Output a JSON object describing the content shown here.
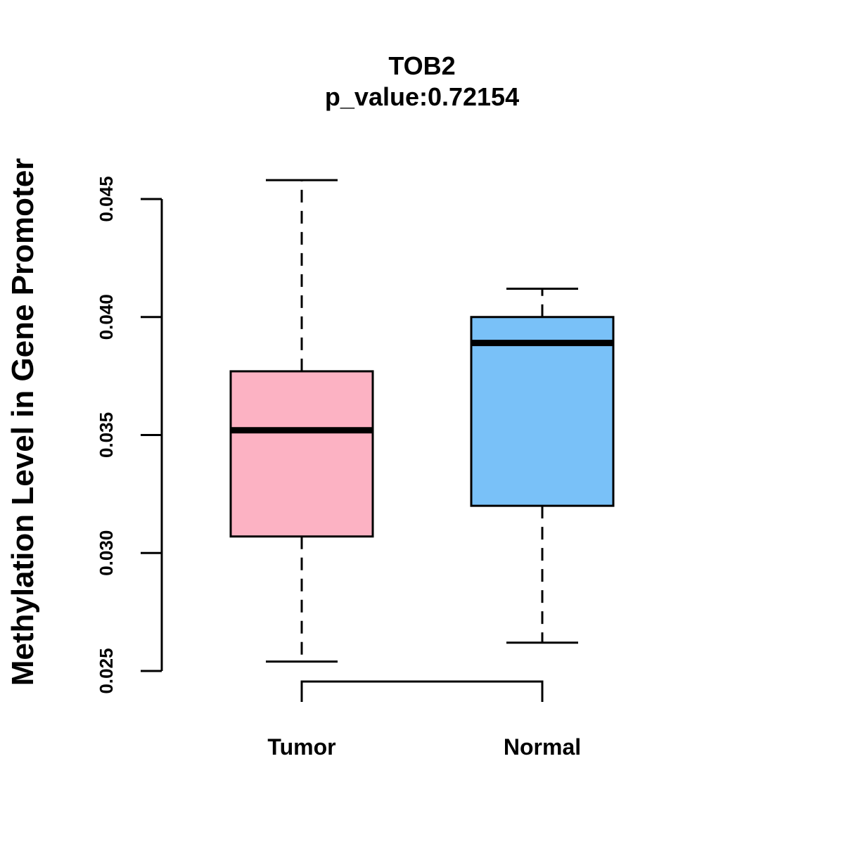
{
  "chart_data": {
    "type": "boxplot",
    "title": "TOB2",
    "subtitle": "p_value:0.72154",
    "xlabel": "",
    "ylabel": "Methylation Level in Gene Promoter",
    "ylim": [
      0.025,
      0.045
    ],
    "yticks": [
      0.025,
      0.03,
      0.035,
      0.04,
      0.045
    ],
    "ytick_labels": [
      "0.025",
      "0.030",
      "0.035",
      "0.040",
      "0.045"
    ],
    "categories": [
      "Tumor",
      "Normal"
    ],
    "boxes": [
      {
        "name": "Tumor",
        "whisker_low": 0.0254,
        "q1": 0.0307,
        "median": 0.0352,
        "q3": 0.0377,
        "whisker_high": 0.0458,
        "color": "#FCB2C3"
      },
      {
        "name": "Normal",
        "whisker_low": 0.0262,
        "q1": 0.032,
        "median": 0.0389,
        "q3": 0.04,
        "whisker_high": 0.0412,
        "color": "#79C1F8"
      }
    ],
    "significance_bracket": {
      "from": "Tumor",
      "to": "Normal",
      "label": ""
    },
    "grid": false,
    "legend": "none"
  }
}
